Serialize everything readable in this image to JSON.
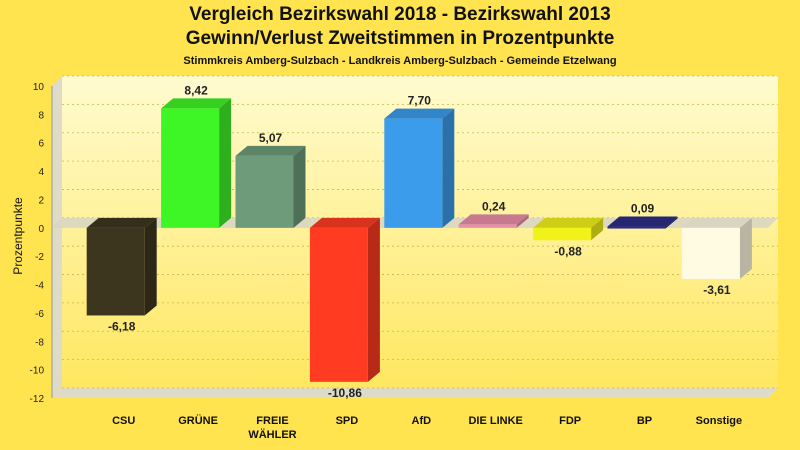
{
  "chart_data": {
    "type": "bar",
    "title": "Vergleich Bezirkswahl 2018 - Bezirkswahl 2013",
    "title2": "Gewinn/Verlust Zweitstimmen in Prozentpunkte",
    "subtitle": "Stimmkreis Amberg-Sulzbach - Landkreis Amberg-Sulzbach - Gemeinde Etzelwang",
    "ylabel": "Prozentpunkte",
    "xlabel": "",
    "ylim": [
      -12,
      10
    ],
    "yticks": [
      -12,
      -10,
      -8,
      -6,
      -4,
      -2,
      0,
      2,
      4,
      6,
      8,
      10
    ],
    "grid": true,
    "categories": [
      [
        "CSU"
      ],
      [
        "GRÜNE"
      ],
      [
        "FREIE",
        "WÄHLER"
      ],
      [
        "SPD"
      ],
      [
        "AfD"
      ],
      [
        "DIE LINKE"
      ],
      [
        "FDP"
      ],
      [
        "BP"
      ],
      [
        "Sonstige"
      ]
    ],
    "values": [
      -6.18,
      8.42,
      5.07,
      -10.86,
      7.7,
      0.24,
      -0.88,
      0.09,
      -3.61
    ],
    "labels": [
      "-6,18",
      "8,42",
      "5,07",
      "-10,86",
      "7,70",
      "0,24",
      "-0,88",
      "0,09",
      "-3,61"
    ],
    "colors": [
      "#3d361f",
      "#3ef526",
      "#6e9b7a",
      "#ff3b22",
      "#3b9cec",
      "#ea8fa8",
      "#f2f21b",
      "#2d2d86",
      "#fffbe2"
    ]
  }
}
